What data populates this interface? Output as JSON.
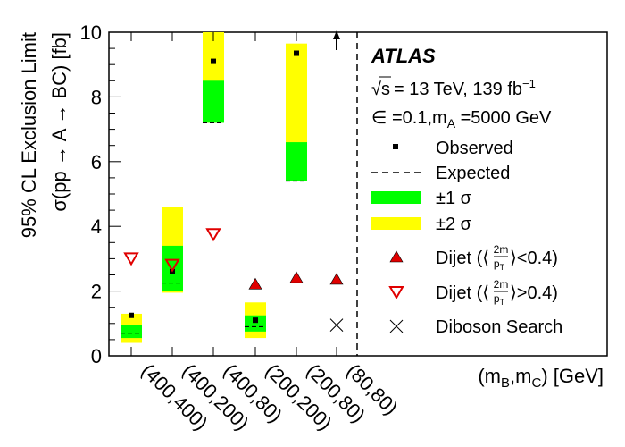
{
  "chart_data": {
    "type": "bar",
    "categories": [
      "(400,400)",
      "(400,200)",
      "(400,80)",
      "(200,200)",
      "(200,80)",
      "(80,80)"
    ],
    "ylim": [
      0,
      10
    ],
    "yticks": [
      0,
      2,
      4,
      6,
      8,
      10
    ],
    "ylabel_line1": "95% CL Exclusion Limit",
    "ylabel_line2": "σ(pp → A → BC) [fb]",
    "xlabel": "(m",
    "xlabel_sub1": "B",
    "xlabel_mid": ",m",
    "xlabel_sub2": "C",
    "xlabel_end": ") [GeV]",
    "series": [
      {
        "name": "Observed",
        "values": [
          1.25,
          2.6,
          9.1,
          1.1,
          9.35,
          null
        ]
      },
      {
        "name": "Expected",
        "values": [
          0.7,
          2.25,
          7.2,
          0.9,
          5.4,
          null
        ]
      },
      {
        "name": "±1 σ",
        "low": [
          0.55,
          2.0,
          7.2,
          0.75,
          5.4,
          null
        ],
        "high": [
          0.95,
          3.4,
          8.5,
          1.25,
          6.6,
          null
        ]
      },
      {
        "name": "±2 σ",
        "low": [
          0.4,
          1.95,
          7.2,
          0.55,
          5.4,
          null
        ],
        "high": [
          1.3,
          4.6,
          10.0,
          1.65,
          9.65,
          null
        ]
      },
      {
        "name": "Dijet (⟨2m/pT⟩<0.4)",
        "values": [
          null,
          null,
          null,
          2.2,
          2.4,
          2.35
        ]
      },
      {
        "name": "Dijet (⟨2m/pT⟩>0.4)",
        "values": [
          3.0,
          2.8,
          3.75,
          null,
          null,
          null
        ]
      },
      {
        "name": "Diboson Search",
        "values": [
          null,
          null,
          null,
          null,
          null,
          0.95
        ]
      }
    ],
    "arrow_category": "(80,80)",
    "colors": {
      "one_sigma": "#00ff00",
      "two_sigma": "#ffff00",
      "dijet": "#e00000",
      "marker": "#000000"
    },
    "legend": {
      "atlas": "ATLAS",
      "energy": "= 13 TeV, 139 fb",
      "energy_sqrt": "√s",
      "energy_sup": "−1",
      "params_pre": "∈ =0.1,m",
      "params_sub": "A",
      "params_post": " =5000 GeV",
      "observed": "Observed",
      "expected": "Expected",
      "one_sigma": "±1 σ",
      "two_sigma": "±2 σ",
      "dijet_pre": "Dijet (⟨",
      "dijet_num": "2m",
      "dijet_den": "p",
      "dijet_den_sub": "T",
      "dijet_lt": "⟩<0.4)",
      "dijet_gt": "⟩>0.4)",
      "diboson": "Diboson Search"
    }
  }
}
